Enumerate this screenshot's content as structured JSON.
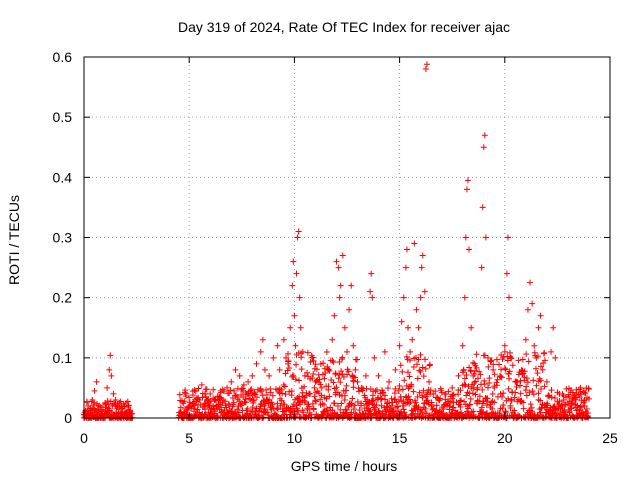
{
  "chart_data": {
    "type": "scatter",
    "title": "Day 319 of 2024, Rate Of TEC Index for receiver ajac",
    "xlabel": "GPS time / hours",
    "ylabel": "ROTI / TECUs",
    "xlim": [
      0,
      25
    ],
    "ylim": [
      0,
      0.6
    ],
    "xticks": [
      "0",
      "5",
      "10",
      "15",
      "20",
      "25"
    ],
    "yticks": [
      "0",
      "0.1",
      "0.2",
      "0.3",
      "0.4",
      "0.5",
      "0.6"
    ],
    "grid": true,
    "marker": "+",
    "color": "#ff0000",
    "series": [
      {
        "points": [
          [
            0.1,
            0.01
          ],
          [
            0.2,
            0.02
          ],
          [
            0.3,
            0.015
          ],
          [
            0.4,
            0.03
          ],
          [
            0.5,
            0.045
          ],
          [
            0.6,
            0.06
          ],
          [
            0.7,
            0.02
          ],
          [
            0.8,
            0.012
          ],
          [
            0.9,
            0.018
          ],
          [
            1.0,
            0.025
          ],
          [
            1.1,
            0.05
          ],
          [
            1.2,
            0.08
          ],
          [
            1.25,
            0.104
          ],
          [
            1.3,
            0.07
          ],
          [
            1.4,
            0.04
          ],
          [
            1.5,
            0.03
          ],
          [
            1.6,
            0.02
          ],
          [
            1.8,
            0.015
          ],
          [
            2.0,
            0.025
          ],
          [
            2.1,
            0.018
          ],
          [
            2.2,
            0.01
          ],
          [
            4.6,
            0.01
          ],
          [
            4.8,
            0.015
          ],
          [
            5.0,
            0.02
          ],
          [
            5.2,
            0.025
          ],
          [
            5.5,
            0.03
          ],
          [
            5.6,
            0.055
          ],
          [
            5.8,
            0.035
          ],
          [
            6.0,
            0.04
          ],
          [
            6.2,
            0.03
          ],
          [
            6.5,
            0.045
          ],
          [
            6.8,
            0.05
          ],
          [
            7.0,
            0.06
          ],
          [
            7.2,
            0.08
          ],
          [
            7.4,
            0.07
          ],
          [
            7.6,
            0.055
          ],
          [
            7.8,
            0.06
          ],
          [
            8.0,
            0.07
          ],
          [
            8.2,
            0.09
          ],
          [
            8.4,
            0.11
          ],
          [
            8.5,
            0.13
          ],
          [
            8.6,
            0.08
          ],
          [
            8.8,
            0.07
          ],
          [
            9.0,
            0.1
          ],
          [
            9.2,
            0.12
          ],
          [
            9.3,
            0.08
          ],
          [
            9.5,
            0.13
          ],
          [
            9.6,
            0.1
          ],
          [
            9.7,
            0.09
          ],
          [
            9.8,
            0.15
          ],
          [
            9.9,
            0.22
          ],
          [
            9.95,
            0.26
          ],
          [
            10.0,
            0.17
          ],
          [
            10.05,
            0.12
          ],
          [
            10.1,
            0.24
          ],
          [
            10.15,
            0.3
          ],
          [
            10.2,
            0.31
          ],
          [
            10.25,
            0.2
          ],
          [
            10.3,
            0.15
          ],
          [
            10.4,
            0.11
          ],
          [
            10.5,
            0.07
          ],
          [
            10.7,
            0.04
          ],
          [
            11.0,
            0.06
          ],
          [
            11.3,
            0.05
          ],
          [
            11.6,
            0.08
          ],
          [
            11.8,
            0.13
          ],
          [
            11.9,
            0.17
          ],
          [
            12.0,
            0.26
          ],
          [
            12.1,
            0.25
          ],
          [
            12.15,
            0.2
          ],
          [
            12.2,
            0.22
          ],
          [
            12.3,
            0.27
          ],
          [
            12.4,
            0.15
          ],
          [
            12.5,
            0.11
          ],
          [
            12.6,
            0.18
          ],
          [
            12.7,
            0.22
          ],
          [
            12.8,
            0.12
          ],
          [
            12.9,
            0.08
          ],
          [
            13.0,
            0.06
          ],
          [
            13.2,
            0.05
          ],
          [
            13.4,
            0.07
          ],
          [
            13.6,
            0.21
          ],
          [
            13.65,
            0.24
          ],
          [
            13.7,
            0.2
          ],
          [
            13.8,
            0.1
          ],
          [
            14.0,
            0.07
          ],
          [
            14.3,
            0.11
          ],
          [
            14.5,
            0.06
          ],
          [
            14.8,
            0.08
          ],
          [
            15.0,
            0.12
          ],
          [
            15.1,
            0.16
          ],
          [
            15.2,
            0.2
          ],
          [
            15.3,
            0.25
          ],
          [
            15.35,
            0.28
          ],
          [
            15.4,
            0.15
          ],
          [
            15.5,
            0.11
          ],
          [
            15.6,
            0.13
          ],
          [
            15.7,
            0.29
          ],
          [
            15.8,
            0.18
          ],
          [
            15.9,
            0.15
          ],
          [
            16.0,
            0.2
          ],
          [
            16.05,
            0.25
          ],
          [
            16.1,
            0.27
          ],
          [
            16.2,
            0.21
          ],
          [
            16.25,
            0.58
          ],
          [
            16.3,
            0.588
          ],
          [
            16.4,
            0.06
          ],
          [
            16.6,
            0.04
          ],
          [
            16.9,
            0.03
          ],
          [
            17.2,
            0.04
          ],
          [
            17.5,
            0.05
          ],
          [
            17.8,
            0.07
          ],
          [
            18.0,
            0.12
          ],
          [
            18.1,
            0.2
          ],
          [
            18.15,
            0.3
          ],
          [
            18.2,
            0.38
          ],
          [
            18.25,
            0.395
          ],
          [
            18.3,
            0.28
          ],
          [
            18.4,
            0.15
          ],
          [
            18.5,
            0.07
          ],
          [
            18.7,
            0.05
          ],
          [
            18.9,
            0.25
          ],
          [
            18.95,
            0.35
          ],
          [
            19.0,
            0.45
          ],
          [
            19.05,
            0.47
          ],
          [
            19.1,
            0.3
          ],
          [
            19.2,
            0.1
          ],
          [
            19.5,
            0.05
          ],
          [
            19.8,
            0.04
          ],
          [
            20.0,
            0.12
          ],
          [
            20.1,
            0.24
          ],
          [
            20.15,
            0.3
          ],
          [
            20.2,
            0.2
          ],
          [
            20.3,
            0.1
          ],
          [
            20.5,
            0.06
          ],
          [
            20.8,
            0.08
          ],
          [
            21.0,
            0.13
          ],
          [
            21.1,
            0.18
          ],
          [
            21.2,
            0.225
          ],
          [
            21.3,
            0.19
          ],
          [
            21.4,
            0.12
          ],
          [
            21.5,
            0.1
          ],
          [
            21.6,
            0.15
          ],
          [
            21.7,
            0.17
          ],
          [
            21.8,
            0.08
          ],
          [
            22.0,
            0.06
          ],
          [
            22.2,
            0.11
          ],
          [
            22.3,
            0.15
          ],
          [
            22.4,
            0.1
          ],
          [
            22.6,
            0.04
          ],
          [
            22.8,
            0.03
          ],
          [
            23.0,
            0.025
          ],
          [
            23.2,
            0.03
          ],
          [
            23.4,
            0.04
          ],
          [
            23.6,
            0.05
          ],
          [
            23.8,
            0.03
          ],
          [
            23.9,
            0.015
          ]
        ]
      }
    ]
  }
}
